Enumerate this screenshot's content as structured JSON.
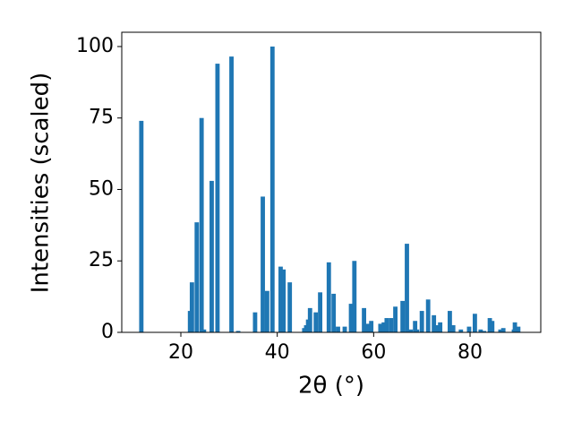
{
  "chart_data": {
    "type": "bar",
    "xlabel": "2θ (°)",
    "ylabel": "Intensities (scaled)",
    "color": "#1f77b4",
    "x": [
      11.8,
      21.9,
      22.3,
      23.3,
      24.3,
      24.8,
      26.4,
      27.6,
      30.5,
      31.9,
      35.4,
      37.0,
      37.9,
      39.0,
      40.7,
      41.3,
      42.6,
      45.6,
      46.0,
      46.4,
      46.8,
      48.0,
      48.9,
      50.7,
      51.7,
      52.6,
      54.0,
      55.3,
      56.0,
      58.0,
      58.8,
      59.5,
      61.4,
      62.1,
      62.7,
      63.6,
      64.5,
      66.0,
      66.9,
      67.7,
      68.6,
      69.0,
      70.0,
      71.3,
      72.5,
      73.1,
      73.8,
      75.8,
      76.5,
      78.1,
      79.8,
      81.0,
      82.2,
      82.9,
      84.1,
      84.6,
      86.3,
      86.9,
      89.1,
      89.3,
      90.0
    ],
    "values": [
      74,
      7.5,
      17.5,
      38.5,
      75,
      1,
      53,
      94,
      96.5,
      0.5,
      7,
      47.5,
      14.5,
      100,
      23,
      22,
      17.5,
      1.5,
      2.5,
      4.5,
      8.5,
      7,
      14,
      24.5,
      13.5,
      2,
      2,
      10,
      25,
      8.5,
      3,
      4,
      3,
      3.5,
      5,
      5,
      9,
      11,
      31,
      1,
      4,
      1,
      7.5,
      11.5,
      6,
      2.5,
      3.5,
      7.5,
      2.5,
      1,
      2,
      6.5,
      1,
      0.5,
      5,
      4,
      1,
      1.5,
      1,
      3.5,
      2
    ],
    "xlim": [
      7.74,
      94.67
    ],
    "ylim": [
      0,
      105
    ],
    "xticks": [
      20,
      40,
      60,
      80
    ],
    "yticks": [
      0,
      25,
      50,
      75,
      100
    ]
  }
}
